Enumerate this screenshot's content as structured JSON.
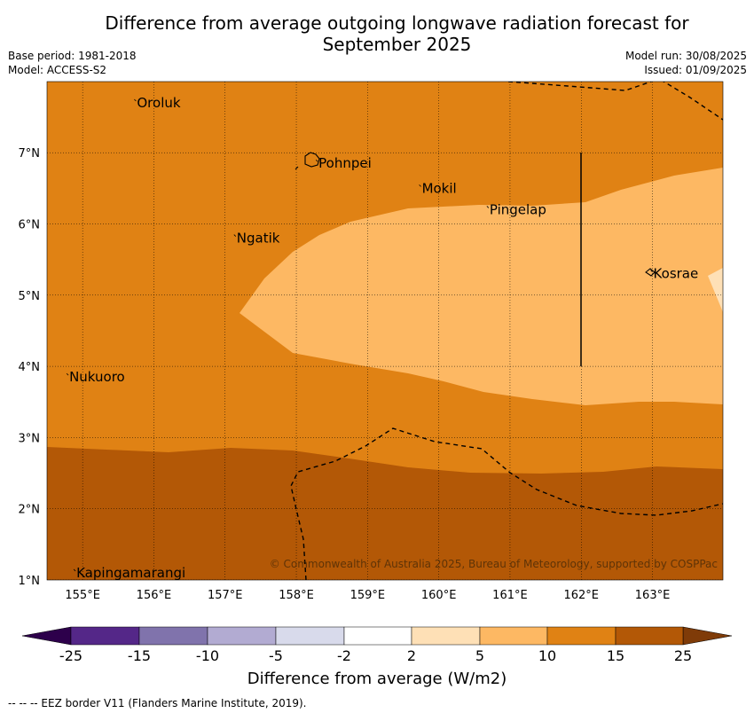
{
  "title_line1": "Difference from average outgoing longwave radiation forecast for",
  "title_line2": "September 2025",
  "base_period": "Base period: 1981-2018",
  "model": "Model: ACCESS-S2",
  "model_run": "Model run: 30/08/2025",
  "issued": "Issued: 01/09/2025",
  "copyright": "© Commonwealth of Australia 2025, Bureau of Meteorology, supported by COSPPac",
  "footnote": "--  --  -- EEZ border V11 (Flanders Marine Institute, 2019).",
  "colors": {
    "c10_15": "#e08214",
    "c5_10": "#fdb863",
    "c2_5": "#fee0b6",
    "c15_25": "#b35806",
    "c25plus": "#7f3b08"
  },
  "places": [
    {
      "name": "Oroluk",
      "lon": 155.75,
      "lat": 7.7
    },
    {
      "name": "Pohnpei",
      "lon": 158.3,
      "lat": 6.85
    },
    {
      "name": "Mokil",
      "lon": 159.75,
      "lat": 6.5
    },
    {
      "name": "Pingelap",
      "lon": 160.7,
      "lat": 6.2
    },
    {
      "name": "Ngatik",
      "lon": 157.15,
      "lat": 5.8
    },
    {
      "name": "Kosrae",
      "lon": 163.0,
      "lat": 5.3
    },
    {
      "name": "Nukuoro",
      "lon": 154.8,
      "lat": 3.85
    },
    {
      "name": "Kapingamarangi",
      "lon": 154.9,
      "lat": 1.1
    }
  ],
  "map": {
    "lon_ticks": [
      "155°E",
      "156°E",
      "157°E",
      "158°E",
      "159°E",
      "160°E",
      "161°E",
      "162°E",
      "163°E"
    ],
    "lat_ticks": [
      "1°N",
      "2°N",
      "3°N",
      "4°N",
      "5°N",
      "6°N",
      "7°N"
    ]
  },
  "colorbar": {
    "ticks": [
      "-25",
      "-15",
      "-10",
      "-5",
      "-2",
      "2",
      "5",
      "10",
      "15",
      "25"
    ],
    "label": "Difference from average (W/m2)"
  }
}
